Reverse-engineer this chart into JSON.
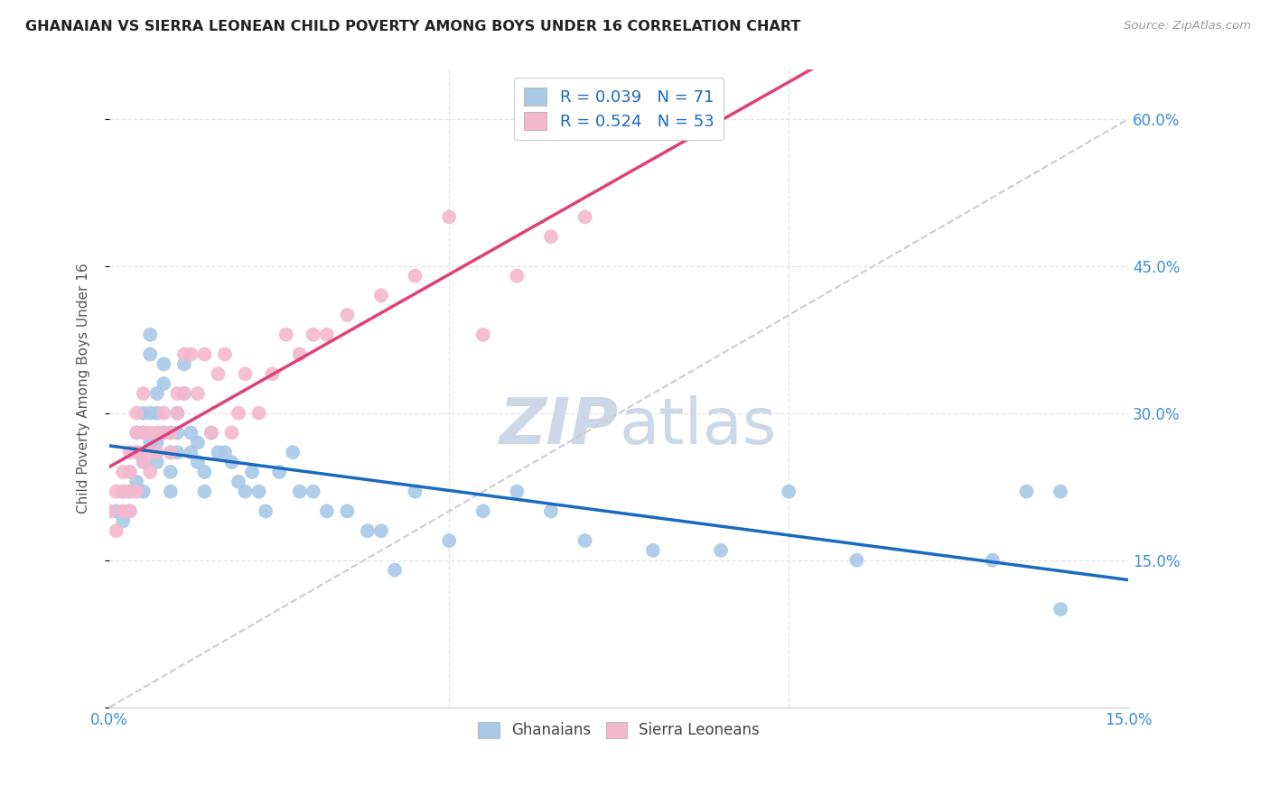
{
  "title": "GHANAIAN VS SIERRA LEONEAN CHILD POVERTY AMONG BOYS UNDER 16 CORRELATION CHART",
  "source": "Source: ZipAtlas.com",
  "ylabel": "Child Poverty Among Boys Under 16",
  "xlim": [
    0.0,
    0.15
  ],
  "ylim": [
    0.0,
    0.65
  ],
  "ghanaian_R": 0.039,
  "ghanaian_N": 71,
  "sierralone_R": 0.524,
  "sierralone_N": 53,
  "ghanaian_color": "#a8c8e8",
  "sierralone_color": "#f4b8cc",
  "ghanaian_line_color": "#1a6abf",
  "sierralone_line_color": "#e0407a",
  "diagonal_color": "#cccccc",
  "watermark_color": "#ccd8e8",
  "title_color": "#222222",
  "tick_label_color": "#3a8fd9",
  "grid_color": "#e0e4e8",
  "ghanaian_x": [
    0.001,
    0.002,
    0.002,
    0.003,
    0.003,
    0.003,
    0.004,
    0.004,
    0.004,
    0.005,
    0.005,
    0.005,
    0.005,
    0.006,
    0.006,
    0.006,
    0.006,
    0.007,
    0.007,
    0.007,
    0.007,
    0.008,
    0.008,
    0.008,
    0.009,
    0.009,
    0.009,
    0.009,
    0.01,
    0.01,
    0.01,
    0.011,
    0.011,
    0.012,
    0.012,
    0.013,
    0.013,
    0.014,
    0.014,
    0.015,
    0.016,
    0.017,
    0.018,
    0.019,
    0.02,
    0.021,
    0.022,
    0.023,
    0.025,
    0.027,
    0.028,
    0.03,
    0.032,
    0.035,
    0.038,
    0.04,
    0.042,
    0.045,
    0.05,
    0.055,
    0.06,
    0.065,
    0.07,
    0.08,
    0.09,
    0.1,
    0.11,
    0.13,
    0.135,
    0.14,
    0.14
  ],
  "ghanaian_y": [
    0.2,
    0.22,
    0.19,
    0.24,
    0.22,
    0.2,
    0.28,
    0.26,
    0.23,
    0.3,
    0.28,
    0.25,
    0.22,
    0.38,
    0.36,
    0.3,
    0.27,
    0.32,
    0.3,
    0.27,
    0.25,
    0.35,
    0.33,
    0.28,
    0.28,
    0.26,
    0.24,
    0.22,
    0.3,
    0.28,
    0.26,
    0.35,
    0.32,
    0.28,
    0.26,
    0.27,
    0.25,
    0.24,
    0.22,
    0.28,
    0.26,
    0.26,
    0.25,
    0.23,
    0.22,
    0.24,
    0.22,
    0.2,
    0.24,
    0.26,
    0.22,
    0.22,
    0.2,
    0.2,
    0.18,
    0.18,
    0.14,
    0.22,
    0.17,
    0.2,
    0.22,
    0.2,
    0.17,
    0.16,
    0.16,
    0.22,
    0.15,
    0.15,
    0.22,
    0.1,
    0.22
  ],
  "sierralone_x": [
    0.0,
    0.001,
    0.001,
    0.002,
    0.002,
    0.002,
    0.003,
    0.003,
    0.003,
    0.003,
    0.004,
    0.004,
    0.004,
    0.004,
    0.005,
    0.005,
    0.005,
    0.006,
    0.006,
    0.006,
    0.007,
    0.007,
    0.008,
    0.008,
    0.009,
    0.009,
    0.01,
    0.01,
    0.011,
    0.011,
    0.012,
    0.013,
    0.014,
    0.015,
    0.016,
    0.017,
    0.018,
    0.019,
    0.02,
    0.022,
    0.024,
    0.026,
    0.028,
    0.03,
    0.032,
    0.035,
    0.04,
    0.045,
    0.05,
    0.055,
    0.06,
    0.065,
    0.07
  ],
  "sierralone_y": [
    0.2,
    0.22,
    0.18,
    0.24,
    0.22,
    0.2,
    0.26,
    0.24,
    0.22,
    0.2,
    0.3,
    0.28,
    0.26,
    0.22,
    0.32,
    0.28,
    0.25,
    0.28,
    0.26,
    0.24,
    0.28,
    0.26,
    0.3,
    0.28,
    0.28,
    0.26,
    0.32,
    0.3,
    0.36,
    0.32,
    0.36,
    0.32,
    0.36,
    0.28,
    0.34,
    0.36,
    0.28,
    0.3,
    0.34,
    0.3,
    0.34,
    0.38,
    0.36,
    0.38,
    0.38,
    0.4,
    0.42,
    0.44,
    0.5,
    0.38,
    0.44,
    0.48,
    0.5
  ]
}
